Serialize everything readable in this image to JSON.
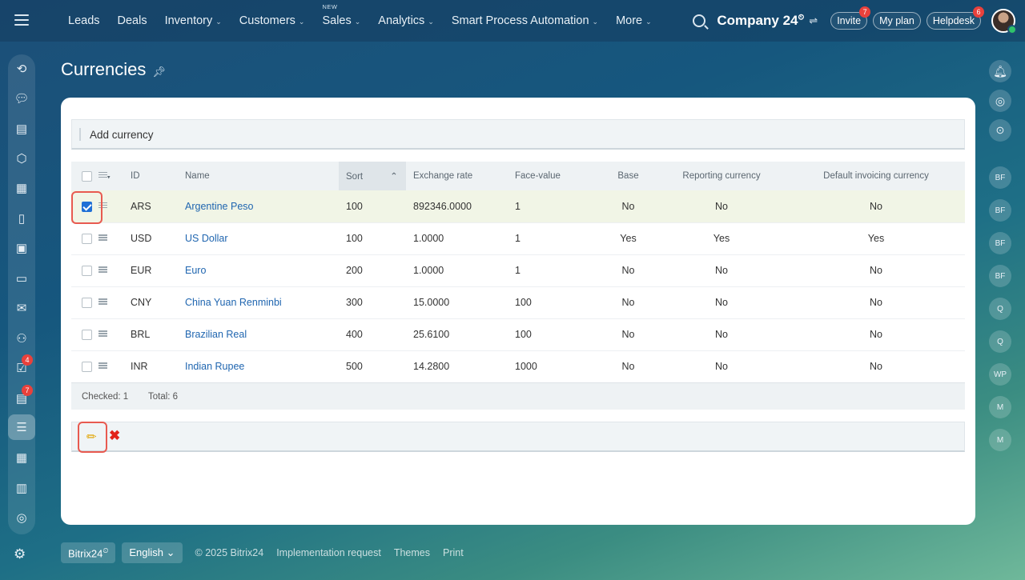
{
  "nav": {
    "items": [
      {
        "label": "Leads",
        "chevron": false,
        "tag": ""
      },
      {
        "label": "Deals",
        "chevron": false,
        "tag": ""
      },
      {
        "label": "Inventory",
        "chevron": true,
        "tag": ""
      },
      {
        "label": "Customers",
        "chevron": true,
        "tag": ""
      },
      {
        "label": "Sales",
        "chevron": true,
        "tag": "NEW"
      },
      {
        "label": "Analytics",
        "chevron": true,
        "tag": ""
      },
      {
        "label": "Smart Process Automation",
        "chevron": true,
        "tag": ""
      },
      {
        "label": "More",
        "chevron": true,
        "tag": ""
      }
    ],
    "company": "Company 24",
    "invite": {
      "label": "Invite",
      "badge": "7"
    },
    "myplan": "My plan",
    "helpdesk": {
      "label": "Helpdesk",
      "badge": "6"
    }
  },
  "sidebar": {
    "badges": {
      "tasks": "4",
      "feed": "7"
    }
  },
  "right_panel": {
    "avatars": [
      "BF",
      "BF",
      "BF",
      "BF",
      "Q",
      "Q",
      "WP",
      "M",
      "M"
    ]
  },
  "page": {
    "title": "Currencies"
  },
  "toolbar": {
    "add_label": "Add currency"
  },
  "table": {
    "columns": {
      "id": "ID",
      "name": "Name",
      "sort": "Sort",
      "rate": "Exchange rate",
      "face": "Face-value",
      "base": "Base",
      "reporting": "Reporting currency",
      "invoicing": "Default invoicing currency"
    },
    "rows": [
      {
        "checked": true,
        "id": "ARS",
        "name": "Argentine Peso",
        "sort": "100",
        "rate": "892346.0000",
        "face": "1",
        "base": "No",
        "reporting": "No",
        "invoicing": "No"
      },
      {
        "checked": false,
        "id": "USD",
        "name": "US Dollar",
        "sort": "100",
        "rate": "1.0000",
        "face": "1",
        "base": "Yes",
        "reporting": "Yes",
        "invoicing": "Yes"
      },
      {
        "checked": false,
        "id": "EUR",
        "name": "Euro",
        "sort": "200",
        "rate": "1.0000",
        "face": "1",
        "base": "No",
        "reporting": "No",
        "invoicing": "No"
      },
      {
        "checked": false,
        "id": "CNY",
        "name": "China Yuan Renminbi",
        "sort": "300",
        "rate": "15.0000",
        "face": "100",
        "base": "No",
        "reporting": "No",
        "invoicing": "No"
      },
      {
        "checked": false,
        "id": "BRL",
        "name": "Brazilian Real",
        "sort": "400",
        "rate": "25.6100",
        "face": "100",
        "base": "No",
        "reporting": "No",
        "invoicing": "No"
      },
      {
        "checked": false,
        "id": "INR",
        "name": "Indian Rupee",
        "sort": "500",
        "rate": "14.2800",
        "face": "1000",
        "base": "No",
        "reporting": "No",
        "invoicing": "No"
      }
    ],
    "checked_text": "Checked: 1",
    "total_text": "Total: 6"
  },
  "footer": {
    "brand": "Bitrix24",
    "language": "English",
    "copyright": "© 2025 Bitrix24",
    "links": [
      "Implementation request",
      "Themes",
      "Print"
    ]
  }
}
